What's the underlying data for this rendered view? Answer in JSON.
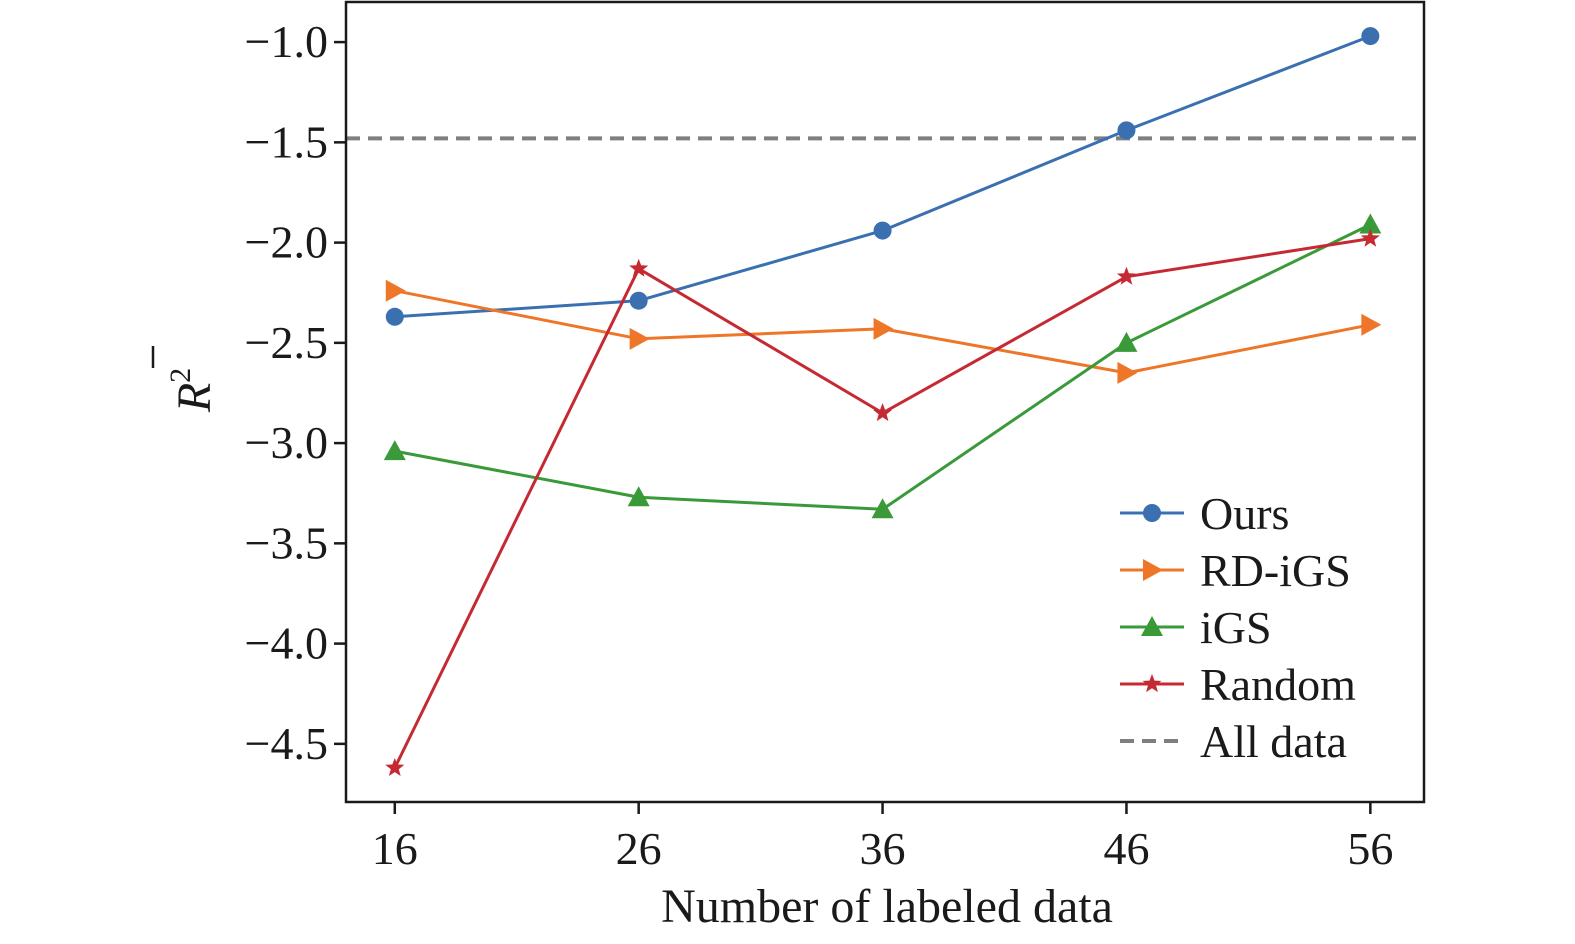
{
  "chart_data": {
    "type": "line",
    "title": "",
    "xlabel": "Number of labeled data",
    "ylabel_main": "R",
    "ylabel_sup": "2",
    "x": [
      16,
      26,
      36,
      46,
      56
    ],
    "x_ticks": [
      "16",
      "26",
      "36",
      "46",
      "56"
    ],
    "y_ticks": [
      {
        "value": -1.0,
        "label": "−1.0"
      },
      {
        "value": -1.5,
        "label": "−1.5"
      },
      {
        "value": -2.0,
        "label": "−2.0"
      },
      {
        "value": -2.5,
        "label": "−2.5"
      },
      {
        "value": -3.0,
        "label": "−3.0"
      },
      {
        "value": -3.5,
        "label": "−3.5"
      },
      {
        "value": -4.0,
        "label": "−4.0"
      },
      {
        "value": -4.5,
        "label": "−4.5"
      }
    ],
    "xlim": [
      14,
      58.2
    ],
    "ylim": [
      -4.79,
      -0.8
    ],
    "grid": false,
    "legend_position": "bottom-right",
    "series": [
      {
        "name": "Ours",
        "color": "#3a70b0",
        "marker": "circle",
        "values": [
          -2.37,
          -2.29,
          -1.94,
          -1.44,
          -0.97
        ]
      },
      {
        "name": "RD-iGS",
        "color": "#ee7628",
        "marker": "triangle-right",
        "values": [
          -2.24,
          -2.48,
          -2.43,
          -2.65,
          -2.41
        ]
      },
      {
        "name": "iGS",
        "color": "#3a9a3a",
        "marker": "triangle-up",
        "values": [
          -3.04,
          -3.27,
          -3.33,
          -2.5,
          -1.91
        ]
      },
      {
        "name": "Random",
        "color": "#c52a33",
        "marker": "star",
        "values": [
          -4.62,
          -2.13,
          -2.85,
          -2.17,
          -1.98
        ]
      }
    ],
    "reference_line": {
      "name": "All data",
      "color": "#7f7f7f",
      "style": "dashed",
      "value": -1.48
    }
  }
}
